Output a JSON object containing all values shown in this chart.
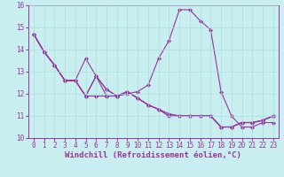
{
  "xlabel": "Windchill (Refroidissement éolien,°C)",
  "background_color": "#c8eef0",
  "line_color": "#993399",
  "xlim": [
    -0.5,
    23.5
  ],
  "ylim": [
    10,
    16
  ],
  "yticks": [
    10,
    11,
    12,
    13,
    14,
    15,
    16
  ],
  "xticks": [
    0,
    1,
    2,
    3,
    4,
    5,
    6,
    7,
    8,
    9,
    10,
    11,
    12,
    13,
    14,
    15,
    16,
    17,
    18,
    19,
    20,
    21,
    22,
    23
  ],
  "series": [
    [
      14.7,
      13.9,
      13.3,
      12.6,
      12.6,
      13.6,
      12.8,
      12.2,
      11.9,
      12.1,
      11.8,
      11.5,
      11.3,
      11.1,
      11.0,
      11.0,
      11.0,
      11.0,
      10.5,
      10.5,
      10.7,
      10.7,
      10.8,
      11.0
    ],
    [
      14.7,
      13.9,
      13.3,
      12.6,
      12.6,
      11.9,
      11.9,
      11.9,
      11.9,
      12.0,
      12.1,
      12.4,
      13.6,
      14.4,
      15.8,
      15.8,
      15.3,
      14.9,
      12.1,
      11.0,
      10.5,
      10.5,
      10.7,
      10.7
    ],
    [
      14.7,
      13.9,
      13.3,
      12.6,
      12.6,
      11.9,
      12.8,
      11.9,
      11.9,
      12.1,
      11.8,
      11.5,
      11.3,
      11.0,
      11.0,
      11.0,
      11.0,
      11.0,
      10.5,
      10.5,
      10.7,
      10.7,
      10.8,
      11.0
    ],
    [
      14.7,
      13.9,
      13.3,
      12.6,
      12.6,
      11.9,
      12.8,
      12.2,
      11.9,
      12.1,
      11.8,
      11.5,
      11.3,
      11.0,
      11.0,
      11.0,
      11.0,
      11.0,
      10.5,
      10.5,
      10.7,
      10.7,
      10.8,
      11.0
    ]
  ],
  "marker": "D",
  "markersize": 2.0,
  "linewidth": 0.8,
  "grid_color": "#aadddd",
  "tick_fontsize": 5.5,
  "xlabel_fontsize": 6.5,
  "xlabel_fontweight": "bold"
}
